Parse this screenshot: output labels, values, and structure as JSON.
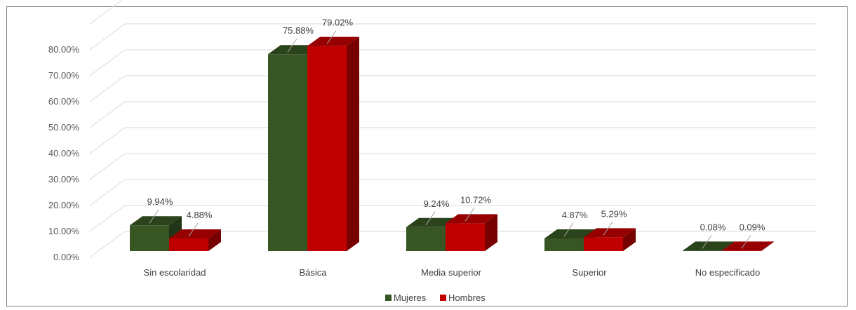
{
  "chart_data": {
    "type": "bar",
    "title": "",
    "xlabel": "",
    "ylabel": "",
    "ylim": [
      0,
      80
    ],
    "y_ticks": [
      "0.00%",
      "10.00%",
      "20.00%",
      "30.00%",
      "40.00%",
      "50.00%",
      "60.00%",
      "70.00%",
      "80.00%"
    ],
    "categories": [
      "Sin escolaridad",
      "Básica",
      "Media superior",
      "Superior",
      "No especificado"
    ],
    "series": [
      {
        "name": "Mujeres",
        "color": "#375623",
        "values": [
          9.94,
          75.88,
          9.24,
          4.87,
          0.08
        ],
        "labels": [
          "9.94%",
          "75.88%",
          "9.24%",
          "4.87%",
          "0.08%"
        ]
      },
      {
        "name": "Hombres",
        "color": "#c00000",
        "values": [
          4.88,
          79.02,
          10.72,
          5.29,
          0.09
        ],
        "labels": [
          "4.88%",
          "79.02%",
          "10.72%",
          "5.29%",
          "0.09%"
        ]
      }
    ],
    "grid": true,
    "legend_position": "bottom",
    "style": "3d-clustered-column"
  }
}
